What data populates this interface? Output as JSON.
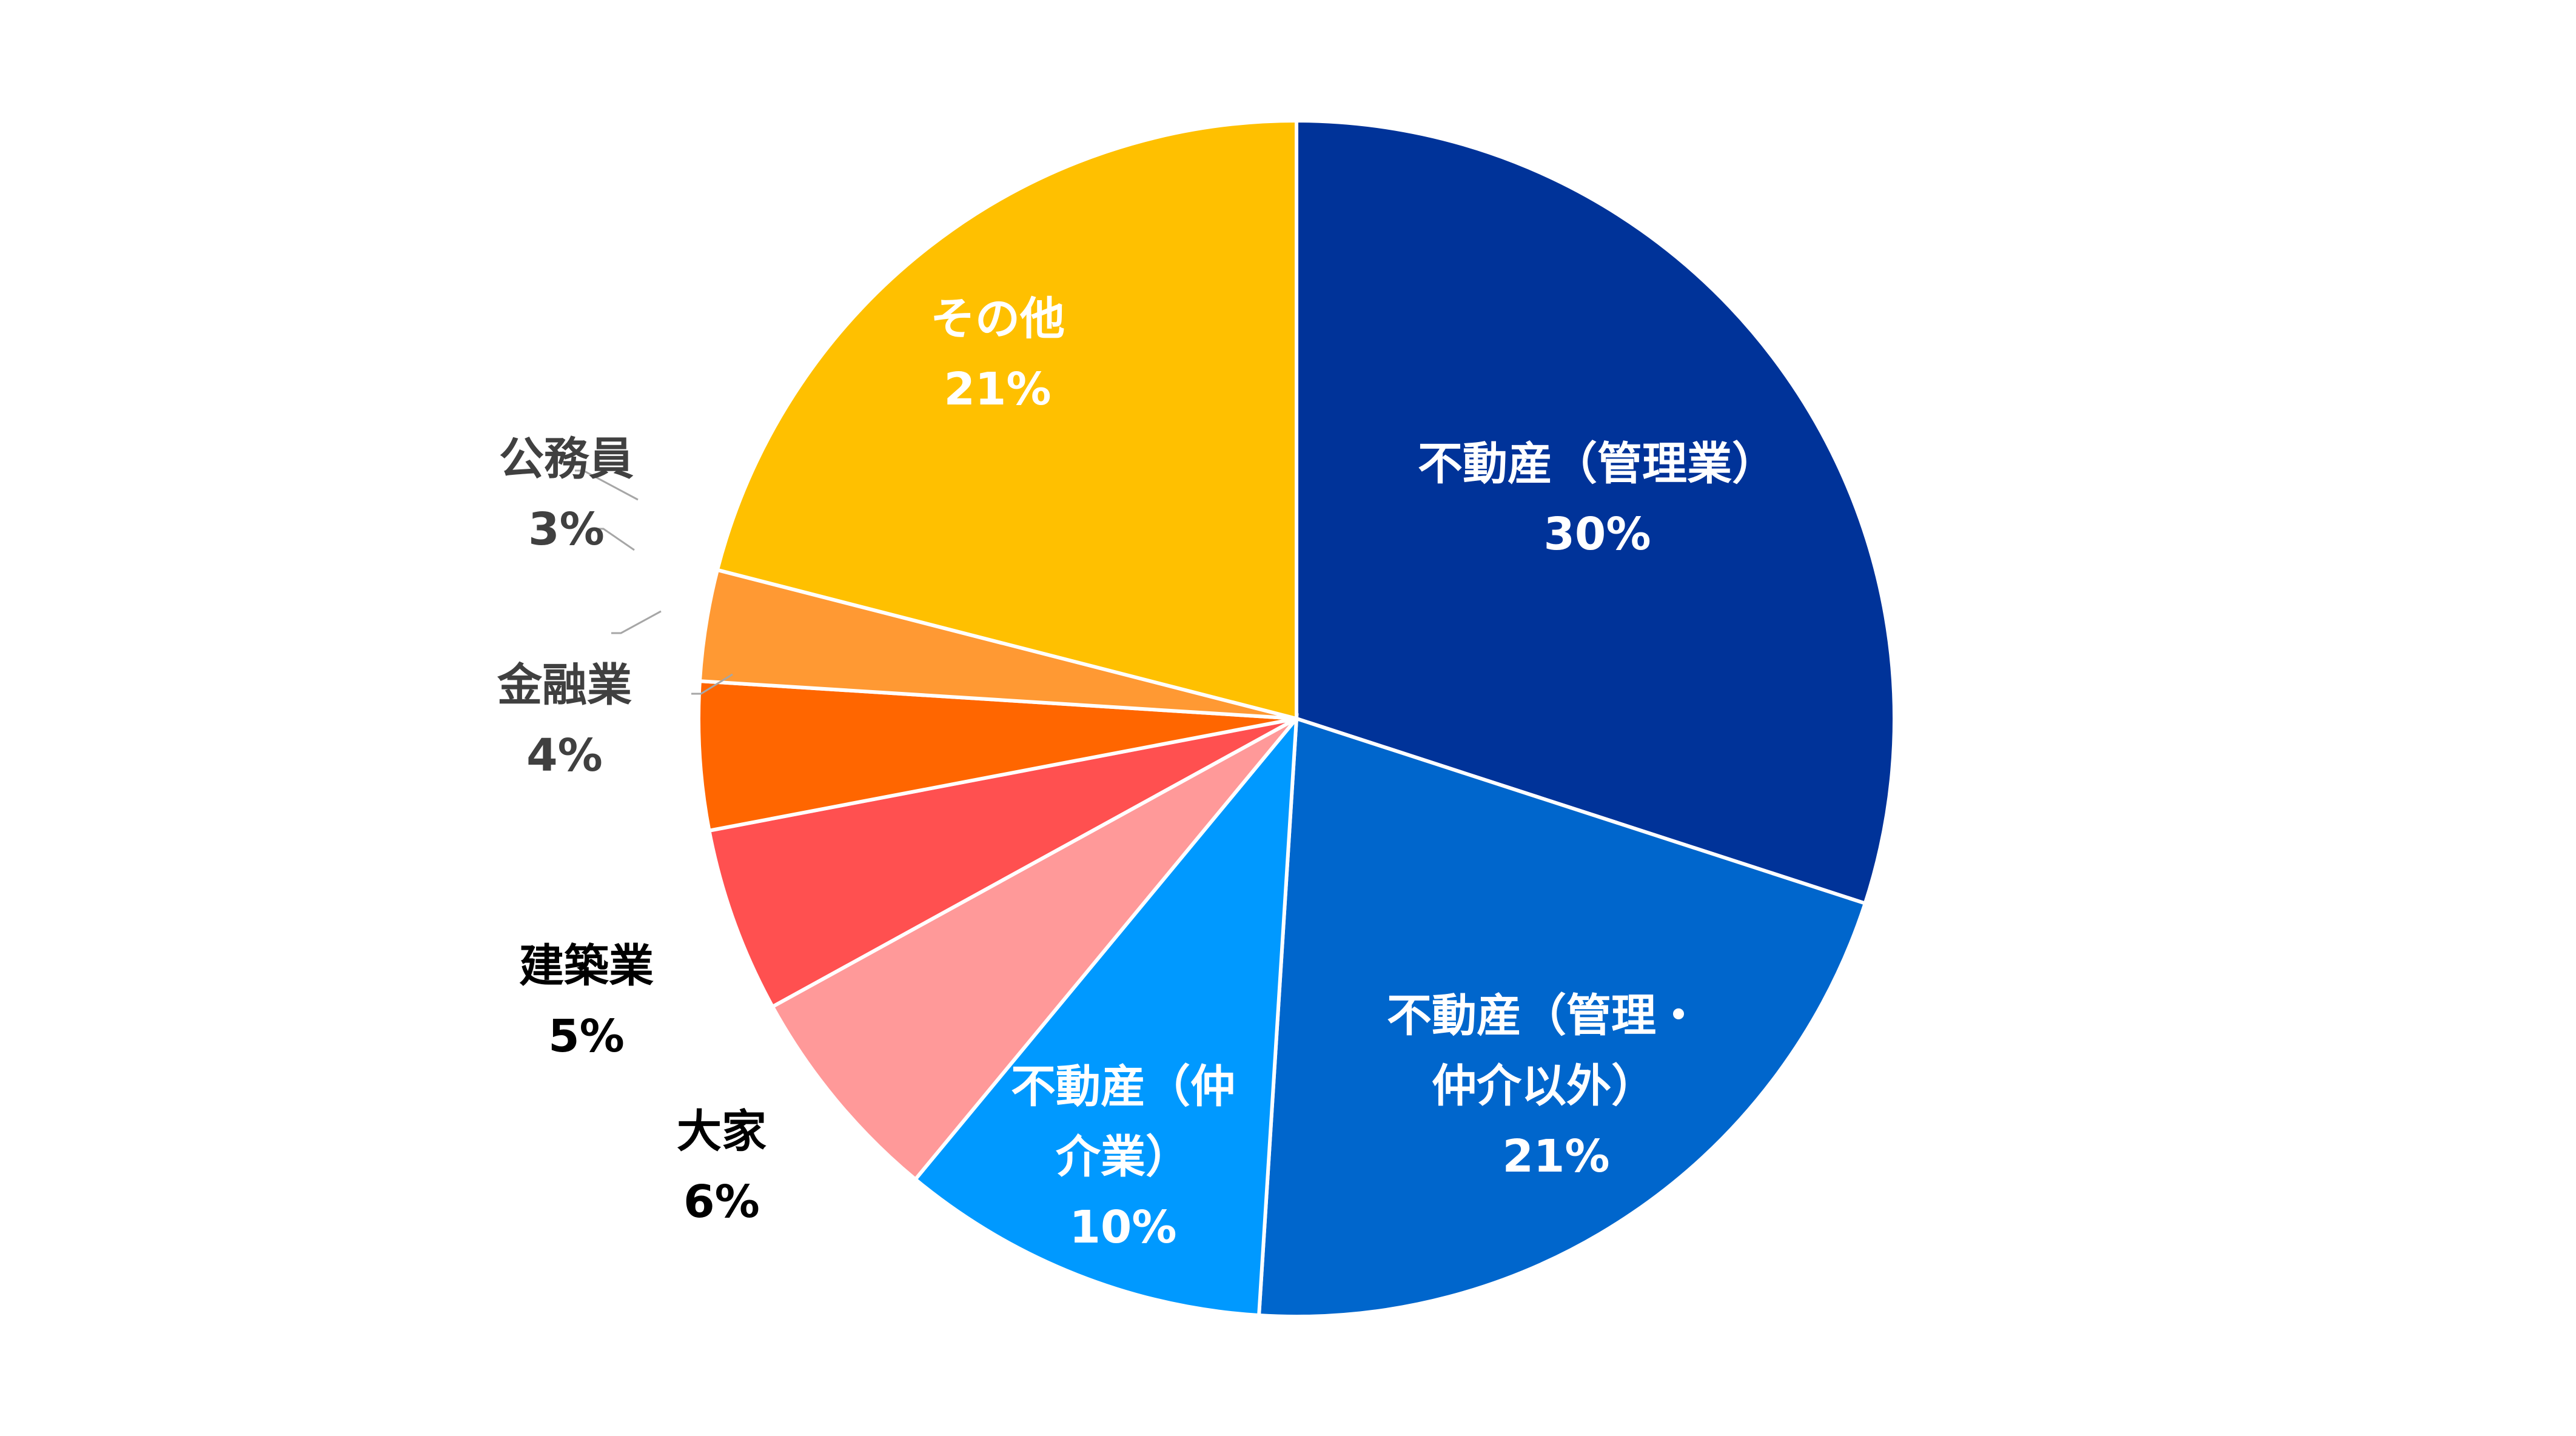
{
  "chart_data": {
    "type": "pie",
    "start": "12 o'clock",
    "direction": "clockwise",
    "slices": [
      {
        "label_lines": [
          "不動産（管理業）"
        ],
        "value": 30,
        "pct_label": "30%",
        "color": "#003399",
        "text_color": "#FFFFFF"
      },
      {
        "label_lines": [
          "不動産（管理・",
          "仲介以外）"
        ],
        "value": 21,
        "pct_label": "21%",
        "color": "#0066CC",
        "text_color": "#FFFFFF"
      },
      {
        "label_lines": [
          "不動産（仲",
          "介業）"
        ],
        "value": 10,
        "pct_label": "10%",
        "color": "#0099FF",
        "text_color": "#FFFFFF"
      },
      {
        "label_lines": [
          "大家"
        ],
        "value": 6,
        "pct_label": "6%",
        "color": "#FF9999",
        "text_color": "#000000"
      },
      {
        "label_lines": [
          "建築業"
        ],
        "value": 5,
        "pct_label": "5%",
        "color": "#FF5050",
        "text_color": "#000000"
      },
      {
        "label_lines": [
          "金融業"
        ],
        "value": 4,
        "pct_label": "4%",
        "color": "#FF6600",
        "text_color": "#404040"
      },
      {
        "label_lines": [
          "公務員"
        ],
        "value": 3,
        "pct_label": "3%",
        "color": "#FF9933",
        "text_color": "#404040"
      },
      {
        "label_lines": [
          "その他"
        ],
        "value": 21,
        "pct_label": "21%",
        "color": "#FFC000",
        "text_color": "#FFFFFF"
      }
    ]
  }
}
